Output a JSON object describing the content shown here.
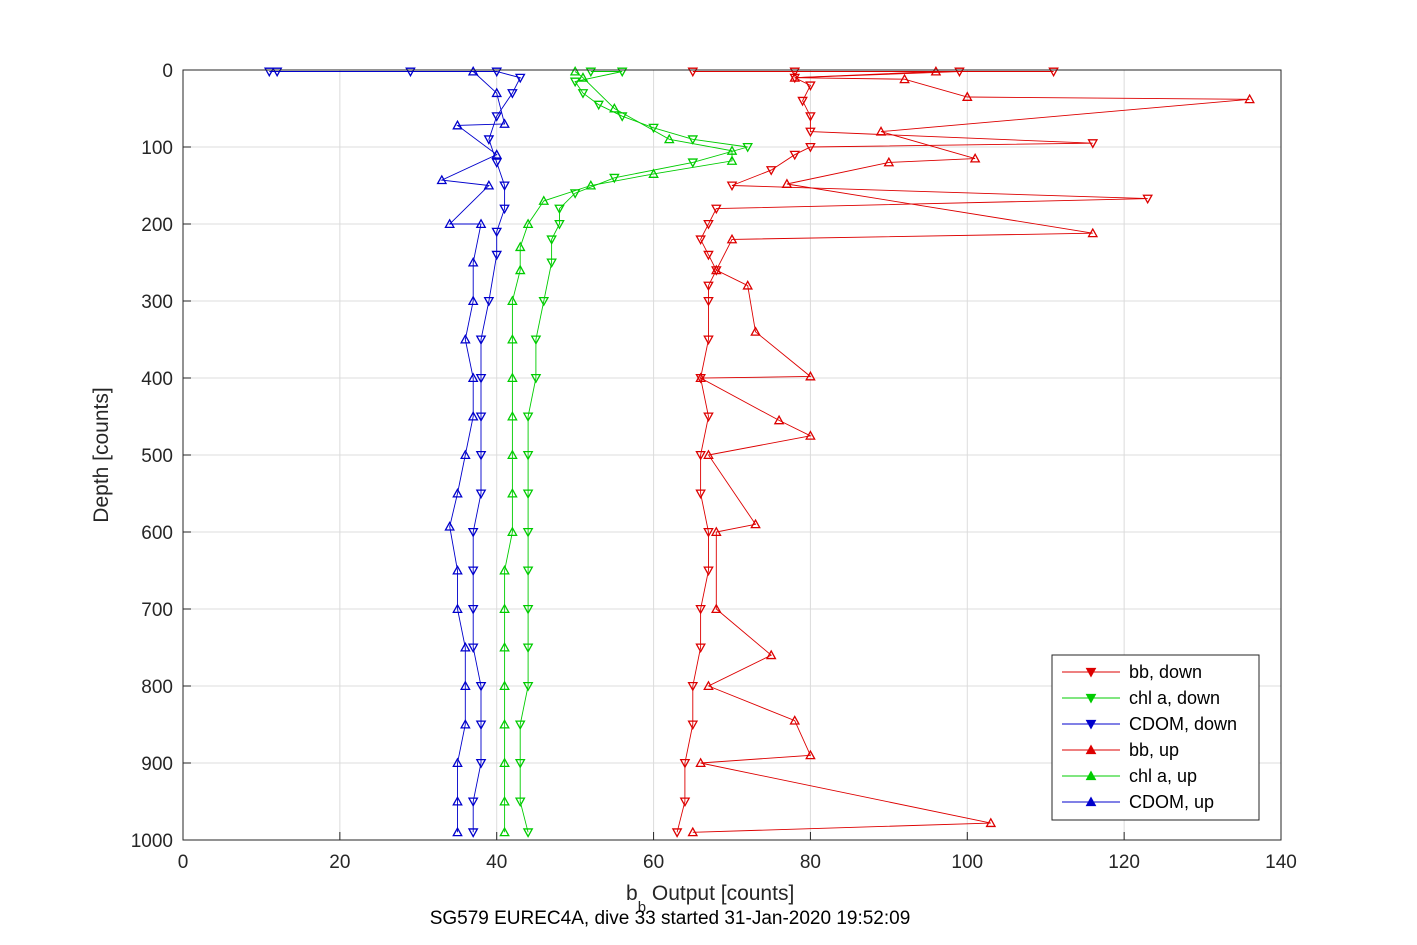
{
  "chart_data": {
    "type": "scatter",
    "xlabel_main": "b",
    "xlabel_sub": "b",
    "xlabel_rest": " Output [counts]",
    "ylabel": "Depth [counts]",
    "caption": "SG579 EUREC4A, dive 33 started 31-Jan-2020 19:52:09",
    "xlim": [
      0,
      140
    ],
    "ylim": [
      0,
      1000
    ],
    "y_reversed": true,
    "grid": true,
    "legend_placement": "bottom-right",
    "x_ticks": [
      "0",
      "20",
      "40",
      "60",
      "80",
      "100",
      "120",
      "140"
    ],
    "y_ticks": [
      "0",
      "100",
      "200",
      "300",
      "400",
      "500",
      "600",
      "700",
      "800",
      "900",
      "1000"
    ],
    "series": [
      {
        "name": "bb, down",
        "color": "#dd0000",
        "marker": "triangle-down",
        "points": [
          [
            65,
            2
          ],
          [
            78,
            2
          ],
          [
            111,
            2
          ],
          [
            99,
            2
          ],
          [
            78,
            10
          ],
          [
            80,
            20
          ],
          [
            79,
            40
          ],
          [
            80,
            60
          ],
          [
            80,
            80
          ],
          [
            116,
            95
          ],
          [
            80,
            100
          ],
          [
            78,
            110
          ],
          [
            75,
            130
          ],
          [
            70,
            150
          ],
          [
            123,
            167
          ],
          [
            68,
            180
          ],
          [
            67,
            200
          ],
          [
            66,
            220
          ],
          [
            67,
            240
          ],
          [
            68,
            260
          ],
          [
            67,
            280
          ],
          [
            67,
            300
          ],
          [
            67,
            350
          ],
          [
            66,
            400
          ],
          [
            67,
            450
          ],
          [
            66,
            500
          ],
          [
            66,
            550
          ],
          [
            67,
            600
          ],
          [
            67,
            650
          ],
          [
            66,
            700
          ],
          [
            66,
            750
          ],
          [
            65,
            800
          ],
          [
            65,
            850
          ],
          [
            64,
            900
          ],
          [
            64,
            950
          ],
          [
            63,
            990
          ]
        ]
      },
      {
        "name": "chl a, down",
        "color": "#00cc00",
        "marker": "triangle-down",
        "points": [
          [
            52,
            2
          ],
          [
            56,
            2
          ],
          [
            50,
            15
          ],
          [
            51,
            30
          ],
          [
            53,
            45
          ],
          [
            56,
            60
          ],
          [
            60,
            75
          ],
          [
            65,
            90
          ],
          [
            72,
            100
          ],
          [
            65,
            120
          ],
          [
            55,
            140
          ],
          [
            50,
            160
          ],
          [
            48,
            180
          ],
          [
            48,
            200
          ],
          [
            47,
            220
          ],
          [
            47,
            250
          ],
          [
            46,
            300
          ],
          [
            45,
            350
          ],
          [
            45,
            400
          ],
          [
            44,
            450
          ],
          [
            44,
            500
          ],
          [
            44,
            550
          ],
          [
            44,
            600
          ],
          [
            44,
            650
          ],
          [
            44,
            700
          ],
          [
            44,
            750
          ],
          [
            44,
            800
          ],
          [
            43,
            850
          ],
          [
            43,
            900
          ],
          [
            43,
            950
          ],
          [
            44,
            990
          ]
        ]
      },
      {
        "name": "CDOM, down",
        "color": "#0000cc",
        "marker": "triangle-down",
        "points": [
          [
            11,
            2
          ],
          [
            12,
            2
          ],
          [
            29,
            2
          ],
          [
            40,
            2
          ],
          [
            43,
            10
          ],
          [
            42,
            30
          ],
          [
            40,
            60
          ],
          [
            39,
            90
          ],
          [
            40,
            120
          ],
          [
            41,
            150
          ],
          [
            41,
            180
          ],
          [
            40,
            210
          ],
          [
            40,
            240
          ],
          [
            39,
            300
          ],
          [
            38,
            350
          ],
          [
            38,
            400
          ],
          [
            38,
            450
          ],
          [
            38,
            500
          ],
          [
            38,
            550
          ],
          [
            37,
            600
          ],
          [
            37,
            650
          ],
          [
            37,
            700
          ],
          [
            37,
            750
          ],
          [
            38,
            800
          ],
          [
            38,
            850
          ],
          [
            38,
            900
          ],
          [
            37,
            950
          ],
          [
            37,
            990
          ]
        ]
      },
      {
        "name": "bb, up",
        "color": "#dd0000",
        "marker": "triangle-up",
        "points": [
          [
            96,
            2
          ],
          [
            78,
            10
          ],
          [
            92,
            12
          ],
          [
            100,
            35
          ],
          [
            136,
            38
          ],
          [
            89,
            80
          ],
          [
            90,
            120
          ],
          [
            101,
            115
          ],
          [
            77,
            148
          ],
          [
            116,
            212
          ],
          [
            70,
            220
          ],
          [
            68,
            260
          ],
          [
            72,
            280
          ],
          [
            73,
            340
          ],
          [
            80,
            398
          ],
          [
            76,
            455
          ],
          [
            80,
            475
          ],
          [
            73,
            590
          ],
          [
            75,
            760
          ],
          [
            78,
            845
          ],
          [
            80,
            890
          ],
          [
            103,
            978
          ],
          [
            66,
            400
          ],
          [
            67,
            500
          ],
          [
            68,
            600
          ],
          [
            68,
            700
          ],
          [
            67,
            800
          ],
          [
            66,
            900
          ],
          [
            65,
            990
          ]
        ]
      },
      {
        "name": "chl a, up",
        "color": "#00cc00",
        "marker": "triangle-up",
        "points": [
          [
            50,
            2
          ],
          [
            51,
            10
          ],
          [
            55,
            50
          ],
          [
            62,
            90
          ],
          [
            70,
            105
          ],
          [
            70,
            118
          ],
          [
            60,
            135
          ],
          [
            52,
            150
          ],
          [
            46,
            170
          ],
          [
            44,
            200
          ],
          [
            43,
            230
          ],
          [
            43,
            260
          ],
          [
            42,
            300
          ],
          [
            42,
            350
          ],
          [
            42,
            400
          ],
          [
            42,
            450
          ],
          [
            42,
            500
          ],
          [
            42,
            550
          ],
          [
            42,
            600
          ],
          [
            41,
            650
          ],
          [
            41,
            700
          ],
          [
            41,
            750
          ],
          [
            41,
            800
          ],
          [
            41,
            850
          ],
          [
            41,
            900
          ],
          [
            41,
            950
          ],
          [
            41,
            990
          ]
        ]
      },
      {
        "name": "CDOM, up",
        "color": "#0000cc",
        "marker": "triangle-up",
        "points": [
          [
            35,
            72
          ],
          [
            33,
            143
          ],
          [
            34,
            200
          ],
          [
            37,
            2
          ],
          [
            40,
            30
          ],
          [
            41,
            70
          ],
          [
            40,
            110
          ],
          [
            39,
            150
          ],
          [
            38,
            200
          ],
          [
            37,
            250
          ],
          [
            37,
            300
          ],
          [
            36,
            350
          ],
          [
            37,
            400
          ],
          [
            37,
            450
          ],
          [
            36,
            500
          ],
          [
            35,
            550
          ],
          [
            34,
            593
          ],
          [
            35,
            650
          ],
          [
            35,
            700
          ],
          [
            36,
            750
          ],
          [
            36,
            800
          ],
          [
            36,
            850
          ],
          [
            35,
            900
          ],
          [
            35,
            950
          ],
          [
            35,
            990
          ]
        ]
      }
    ]
  }
}
